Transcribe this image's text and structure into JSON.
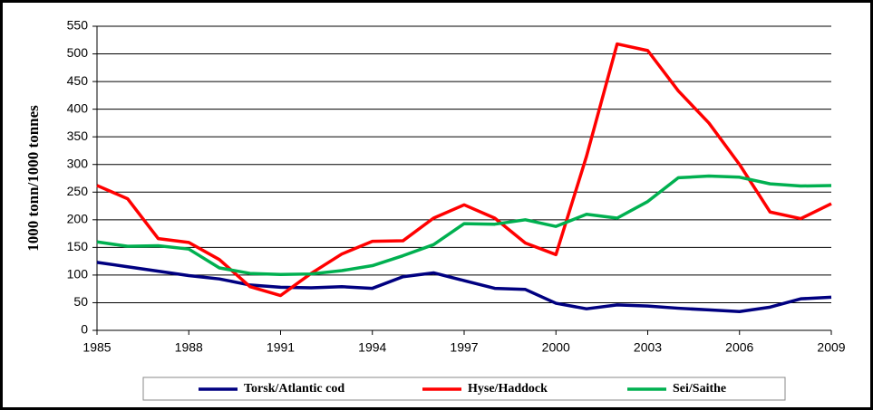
{
  "chart_data": {
    "type": "line",
    "y_label": "1000 tonn/1000 tonnes",
    "x": [
      1985,
      1986,
      1987,
      1988,
      1989,
      1990,
      1991,
      1992,
      1993,
      1994,
      1995,
      1996,
      1997,
      1998,
      1999,
      2000,
      2001,
      2002,
      2003,
      2004,
      2005,
      2006,
      2007,
      2008,
      2009
    ],
    "series": [
      {
        "name": "Torsk/Atlantic cod",
        "color": "#000080",
        "values": [
          123,
          115,
          107,
          99,
          93,
          82,
          78,
          77,
          79,
          76,
          97,
          104,
          90,
          76,
          74,
          49,
          39,
          46,
          44,
          40,
          37,
          34,
          42,
          57,
          60
        ]
      },
      {
        "name": "Hyse/Haddock",
        "color": "#ff0000",
        "values": [
          262,
          238,
          166,
          159,
          128,
          79,
          63,
          103,
          138,
          161,
          162,
          203,
          227,
          203,
          158,
          137,
          315,
          518,
          506,
          433,
          375,
          300,
          214,
          202,
          229
        ]
      },
      {
        "name": "Sei/Saithe",
        "color": "#00b050",
        "values": [
          160,
          152,
          153,
          147,
          113,
          103,
          101,
          102,
          108,
          117,
          135,
          155,
          193,
          192,
          200,
          188,
          210,
          203,
          233,
          276,
          279,
          277,
          265,
          261,
          262
        ]
      }
    ],
    "xlim": [
      1985,
      2009
    ],
    "xticks": [
      1985,
      1988,
      1991,
      1994,
      1997,
      2000,
      2003,
      2006,
      2009
    ],
    "ylim": [
      0,
      550
    ],
    "yticks": [
      0,
      50,
      100,
      150,
      200,
      250,
      300,
      350,
      400,
      450,
      500,
      550
    ],
    "grid": true,
    "legend": "bottom"
  }
}
